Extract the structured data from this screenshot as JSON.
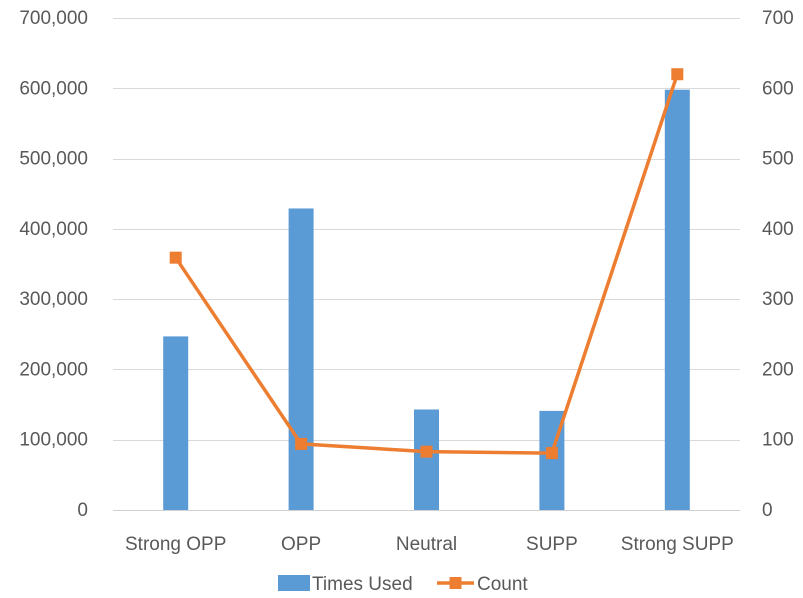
{
  "chart_data": {
    "type": "bar",
    "categories": [
      "Strong OPP",
      "OPP",
      "Neutral",
      "SUPP",
      "Strong SUPP"
    ],
    "series": [
      {
        "name": "Times Used",
        "type": "bar",
        "axis": "left",
        "color": "#5B9BD5",
        "values": [
          247000,
          429000,
          143000,
          141000,
          598000
        ]
      },
      {
        "name": "Count",
        "type": "line",
        "axis": "right",
        "color": "#ED7D31",
        "marker": "square",
        "values": [
          359,
          94,
          83,
          81,
          620
        ]
      }
    ],
    "y_left": {
      "lim": [
        0,
        700000
      ],
      "ticks": [
        0,
        100000,
        200000,
        300000,
        400000,
        500000,
        600000,
        700000
      ],
      "tick_labels": [
        "0",
        "100,000",
        "200,000",
        "300,000",
        "400,000",
        "500,000",
        "600,000",
        "700,000"
      ]
    },
    "y_right": {
      "lim": [
        0,
        700
      ],
      "ticks": [
        0,
        100,
        200,
        300,
        400,
        500,
        600,
        700
      ],
      "tick_labels": [
        "0",
        "100",
        "200",
        "300",
        "400",
        "500",
        "600",
        "700"
      ]
    },
    "title": "",
    "xlabel": "",
    "grid": true,
    "legend": "bottom"
  }
}
